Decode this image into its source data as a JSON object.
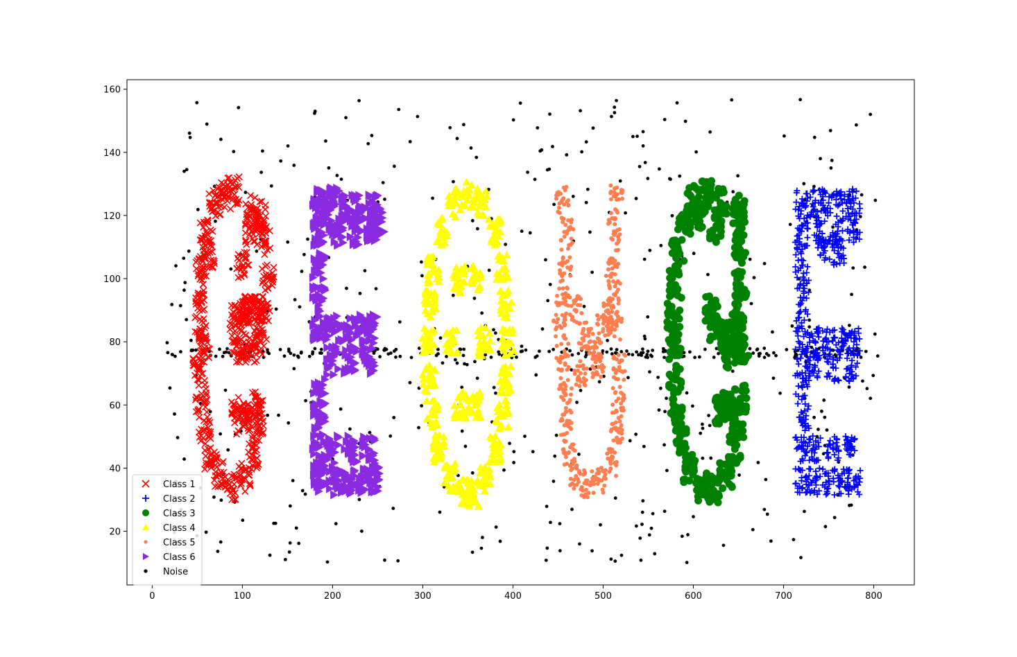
{
  "chart_data": {
    "type": "scatter",
    "title": "",
    "xlabel": "",
    "ylabel": "",
    "xlim": [
      -28,
      845
    ],
    "ylim": [
      3,
      163
    ],
    "xticks": [
      0,
      100,
      200,
      300,
      400,
      500,
      600,
      700,
      800
    ],
    "yticks": [
      20,
      40,
      60,
      80,
      100,
      120,
      140,
      160
    ],
    "grid": false,
    "legend_position": "lower-left",
    "series": [
      {
        "name": "Class 1",
        "marker": "x",
        "color": "#ff0000",
        "shape": "letter G",
        "x_range": [
          45,
          135
        ],
        "y_range": [
          30,
          130
        ],
        "points": [
          [
            90,
            128
          ],
          [
            70,
            124
          ],
          [
            110,
            122
          ],
          [
            60,
            115
          ],
          [
            55,
            104
          ],
          [
            52,
            94
          ],
          [
            53,
            84
          ],
          [
            52,
            72
          ],
          [
            54,
            62
          ],
          [
            58,
            52
          ],
          [
            65,
            44
          ],
          [
            75,
            38
          ],
          [
            88,
            34
          ],
          [
            102,
            37
          ],
          [
            112,
            44
          ],
          [
            117,
            52
          ],
          [
            118,
            60
          ],
          [
            108,
            56
          ],
          [
            100,
            55
          ],
          [
            95,
            58
          ],
          [
            118,
            90
          ],
          [
            112,
            90
          ],
          [
            105,
            90
          ],
          [
            98,
            90
          ],
          [
            92,
            88
          ],
          [
            95,
            80
          ],
          [
            100,
            78
          ],
          [
            110,
            78
          ],
          [
            120,
            80
          ],
          [
            125,
            88
          ],
          [
            128,
            100
          ],
          [
            125,
            112
          ],
          [
            120,
            120
          ],
          [
            100,
            104
          ],
          [
            110,
            115
          ],
          [
            80,
            126
          ],
          [
            62,
            108
          ],
          [
            58,
            78
          ]
        ]
      },
      {
        "name": "Class 2",
        "marker": "+",
        "color": "#0000ff",
        "shape": "letter E",
        "x_range": [
          710,
          785
        ],
        "y_range": [
          32,
          128
        ],
        "points": [
          [
            720,
            124
          ],
          [
            735,
            124
          ],
          [
            750,
            124
          ],
          [
            765,
            124
          ],
          [
            778,
            124
          ],
          [
            720,
            115
          ],
          [
            740,
            115
          ],
          [
            760,
            115
          ],
          [
            778,
            115
          ],
          [
            720,
            106
          ],
          [
            722,
            96
          ],
          [
            720,
            86
          ],
          [
            720,
            76
          ],
          [
            735,
            80
          ],
          [
            750,
            80
          ],
          [
            765,
            80
          ],
          [
            778,
            80
          ],
          [
            735,
            72
          ],
          [
            755,
            72
          ],
          [
            775,
            72
          ],
          [
            720,
            66
          ],
          [
            722,
            56
          ],
          [
            720,
            46
          ],
          [
            720,
            36
          ],
          [
            735,
            36
          ],
          [
            750,
            36
          ],
          [
            765,
            36
          ],
          [
            778,
            36
          ],
          [
            735,
            46
          ],
          [
            755,
            46
          ],
          [
            775,
            46
          ],
          [
            760,
            108
          ],
          [
            745,
            110
          ]
        ]
      },
      {
        "name": "Class 3",
        "marker": "o",
        "color": "#008000",
        "shape": "letter G",
        "x_range": [
          570,
          660
        ],
        "y_range": [
          30,
          128
        ],
        "points": [
          [
            615,
            127
          ],
          [
            600,
            125
          ],
          [
            630,
            124
          ],
          [
            650,
            122
          ],
          [
            590,
            118
          ],
          [
            583,
            108
          ],
          [
            580,
            98
          ],
          [
            578,
            88
          ],
          [
            579,
            78
          ],
          [
            580,
            68
          ],
          [
            582,
            58
          ],
          [
            586,
            48
          ],
          [
            595,
            40
          ],
          [
            608,
            34
          ],
          [
            622,
            33
          ],
          [
            636,
            38
          ],
          [
            646,
            46
          ],
          [
            650,
            54
          ],
          [
            652,
            62
          ],
          [
            640,
            60
          ],
          [
            630,
            58
          ],
          [
            650,
            118
          ],
          [
            652,
            108
          ],
          [
            652,
            98
          ],
          [
            650,
            88
          ],
          [
            645,
            82
          ],
          [
            635,
            82
          ],
          [
            625,
            84
          ],
          [
            620,
            90
          ],
          [
            640,
            76
          ],
          [
            655,
            78
          ],
          [
            608,
            120
          ],
          [
            625,
            116
          ]
        ]
      },
      {
        "name": "Class 4",
        "marker": "^",
        "color": "#ffff00",
        "shape": "letter O",
        "x_range": [
          305,
          400
        ],
        "y_range": [
          28,
          130
        ],
        "points": [
          [
            350,
            127
          ],
          [
            335,
            124
          ],
          [
            365,
            124
          ],
          [
            320,
            115
          ],
          [
            380,
            115
          ],
          [
            312,
            103
          ],
          [
            388,
            103
          ],
          [
            308,
            92
          ],
          [
            392,
            92
          ],
          [
            306,
            80
          ],
          [
            394,
            80
          ],
          [
            307,
            68
          ],
          [
            392,
            68
          ],
          [
            310,
            57
          ],
          [
            388,
            57
          ],
          [
            318,
            46
          ],
          [
            380,
            46
          ],
          [
            330,
            37
          ],
          [
            368,
            37
          ],
          [
            345,
            32
          ],
          [
            356,
            32
          ],
          [
            340,
            100
          ],
          [
            360,
            100
          ],
          [
            332,
            80
          ],
          [
            368,
            80
          ],
          [
            342,
            60
          ],
          [
            358,
            60
          ]
        ]
      },
      {
        "name": "Class 5",
        "marker": ".",
        "color": "#ff7f50",
        "shape": "letter U",
        "x_range": [
          445,
          525
        ],
        "y_range": [
          30,
          128
        ],
        "points": [
          [
            455,
            125
          ],
          [
            460,
            115
          ],
          [
            458,
            105
          ],
          [
            455,
            95
          ],
          [
            452,
            85
          ],
          [
            455,
            75
          ],
          [
            458,
            65
          ],
          [
            460,
            55
          ],
          [
            462,
            45
          ],
          [
            470,
            37
          ],
          [
            482,
            35
          ],
          [
            496,
            36
          ],
          [
            508,
            42
          ],
          [
            515,
            52
          ],
          [
            517,
            62
          ],
          [
            518,
            72
          ],
          [
            515,
            85
          ],
          [
            512,
            95
          ],
          [
            510,
            105
          ],
          [
            512,
            115
          ],
          [
            515,
            125
          ],
          [
            480,
            82
          ],
          [
            490,
            78
          ],
          [
            500,
            84
          ],
          [
            475,
            70
          ],
          [
            495,
            72
          ],
          [
            470,
            90
          ],
          [
            505,
            90
          ]
        ]
      },
      {
        "name": "Class 6",
        "marker": ">",
        "color": "#8a2be2",
        "shape": "letter E",
        "x_range": [
          180,
          260
        ],
        "y_range": [
          33,
          128
        ],
        "points": [
          [
            185,
            125
          ],
          [
            200,
            125
          ],
          [
            215,
            123
          ],
          [
            230,
            123
          ],
          [
            245,
            122
          ],
          [
            185,
            115
          ],
          [
            205,
            115
          ],
          [
            225,
            115
          ],
          [
            245,
            115
          ],
          [
            185,
            104
          ],
          [
            185,
            94
          ],
          [
            185,
            84
          ],
          [
            200,
            84
          ],
          [
            215,
            84
          ],
          [
            230,
            84
          ],
          [
            245,
            84
          ],
          [
            200,
            74
          ],
          [
            220,
            74
          ],
          [
            240,
            74
          ],
          [
            185,
            64
          ],
          [
            185,
            54
          ],
          [
            185,
            44
          ],
          [
            185,
            36
          ],
          [
            200,
            36
          ],
          [
            215,
            36
          ],
          [
            230,
            36
          ],
          [
            245,
            36
          ],
          [
            200,
            46
          ],
          [
            220,
            46
          ],
          [
            240,
            46
          ],
          [
            190,
            120
          ],
          [
            250,
            118
          ]
        ]
      },
      {
        "name": "Noise",
        "marker": ".",
        "color": "#000000",
        "shape": "background",
        "x_range": [
          15,
          805
        ],
        "y_range": [
          10,
          157
        ],
        "count": 700,
        "band_y": 76.5
      }
    ]
  }
}
